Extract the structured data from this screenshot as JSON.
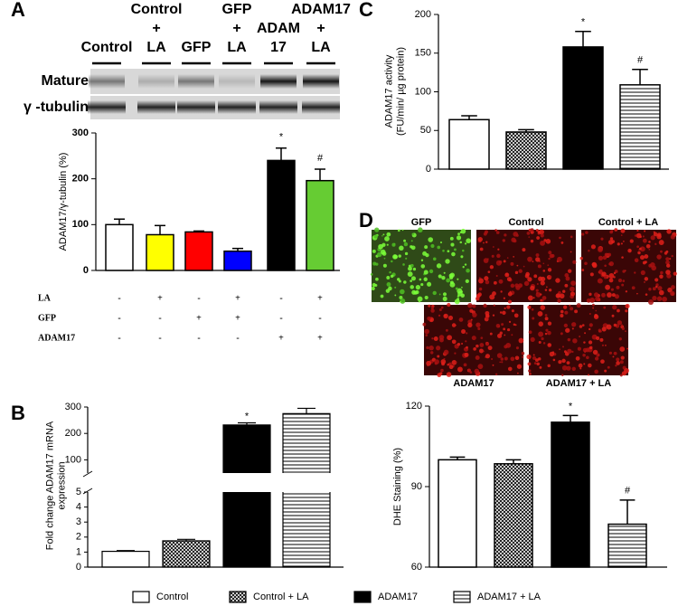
{
  "chart_data": [
    {
      "type": "bar",
      "label": "A",
      "blot": {
        "lanes": [
          [
            "Control"
          ],
          [
            "Control",
            "+",
            "LA"
          ],
          [
            "GFP"
          ],
          [
            "GFP",
            "+",
            "LA"
          ],
          [
            "ADAM",
            "17"
          ],
          [
            "ADAM17",
            "+",
            "LA"
          ]
        ],
        "rows": [
          "Mature",
          "γ -tubulin"
        ]
      },
      "ylabel": [
        "ADAM17/γ-tubulin (%)"
      ],
      "values": [
        100,
        78,
        84,
        42,
        240,
        196
      ],
      "errors": [
        12,
        20,
        2,
        6,
        27,
        25
      ],
      "colors": [
        "#ffffff",
        "#ffff00",
        "#ff0000",
        "#0000ff",
        "#000000",
        "#66cc33"
      ],
      "markers": [
        null,
        null,
        null,
        null,
        "*",
        "#"
      ],
      "ylim": [
        0,
        300
      ],
      "yticks": [
        0,
        100,
        200,
        300
      ],
      "conditions": [
        {
          "name": "LA",
          "signs": [
            "-",
            "+",
            "-",
            "+",
            "-",
            "+"
          ]
        },
        {
          "name": "GFP",
          "signs": [
            "-",
            "-",
            "+",
            "+",
            "-",
            "-"
          ]
        },
        {
          "name": "ADAM17",
          "signs": [
            "-",
            "-",
            "-",
            "-",
            "+",
            "+"
          ]
        }
      ]
    },
    {
      "type": "broken-bar",
      "label": "B",
      "ylabel": [
        "Fold change ADAM17 mRNA",
        "expression"
      ],
      "values": [
        1.05,
        1.75,
        232,
        275
      ],
      "errors": [
        0.05,
        0.1,
        8,
        20
      ],
      "patterns": [
        "solid",
        "checker",
        "solid",
        "stripes"
      ],
      "colors": [
        "#ffffff",
        "#000000",
        "#000000",
        "#000000"
      ],
      "markers": [
        null,
        null,
        "*",
        null
      ],
      "lower": {
        "ylim": [
          0,
          5
        ],
        "yticks": [
          0,
          1,
          2,
          3,
          4,
          5
        ]
      },
      "upper": {
        "ylim": [
          50,
          300
        ],
        "yticks": [
          100,
          200,
          300
        ]
      }
    },
    {
      "type": "bar",
      "label": "C",
      "ylabel": [
        "ADAM17 activity",
        "(FU/min/ µg protein)"
      ],
      "values": [
        64,
        48,
        158,
        109
      ],
      "errors": [
        5,
        3,
        20,
        20
      ],
      "patterns": [
        "solid",
        "checker",
        "solid",
        "stripes"
      ],
      "colors": [
        "#ffffff",
        "#000000",
        "#000000",
        "#000000"
      ],
      "markers": [
        null,
        null,
        "*",
        "#"
      ],
      "ylim": [
        0,
        200
      ],
      "yticks": [
        0,
        50,
        100,
        150,
        200
      ]
    },
    {
      "type": "bar",
      "label": "D",
      "images": [
        "GFP",
        "Control",
        "Control + LA",
        "ADAM17",
        "ADAM17 + LA"
      ],
      "ylabel": [
        "DHE Staining (%)"
      ],
      "values": [
        100,
        98.5,
        114,
        76
      ],
      "errors": [
        1,
        1.5,
        2.5,
        9
      ],
      "patterns": [
        "solid",
        "checker",
        "solid",
        "stripes"
      ],
      "colors": [
        "#ffffff",
        "#000000",
        "#000000",
        "#000000"
      ],
      "markers": [
        null,
        null,
        "*",
        "#"
      ],
      "ylim": [
        60,
        120
      ],
      "yticks": [
        60,
        90,
        120
      ]
    }
  ],
  "legend": [
    {
      "name": "Control",
      "pattern": "solid",
      "color": "#ffffff"
    },
    {
      "name": "Control + LA",
      "pattern": "checker",
      "color": "#000000"
    },
    {
      "name": "ADAM17",
      "pattern": "solid",
      "color": "#000000"
    },
    {
      "name": "ADAM17 + LA",
      "pattern": "stripes",
      "color": "#000000"
    }
  ]
}
